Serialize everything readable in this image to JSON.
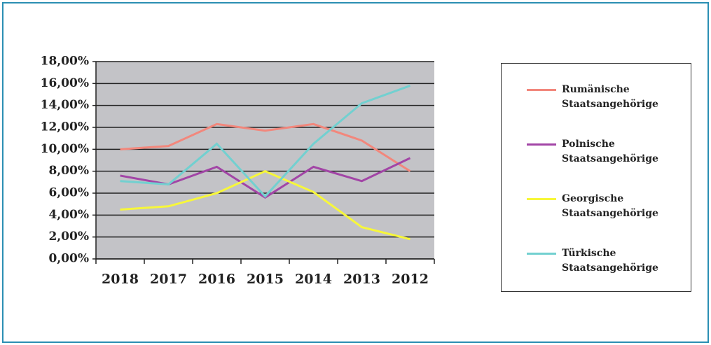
{
  "chart_data": {
    "type": "line",
    "categories": [
      "2018",
      "2017",
      "2016",
      "2015",
      "2014",
      "2013",
      "2012"
    ],
    "series": [
      {
        "name": "Rumänische Staatsangehörige",
        "color": "#f2877c",
        "values": [
          10.0,
          10.3,
          12.3,
          11.7,
          12.3,
          10.8,
          8.0
        ]
      },
      {
        "name": "Polnische Staatsangehörige",
        "color": "#a245a6",
        "values": [
          7.6,
          6.8,
          8.4,
          5.6,
          8.4,
          7.1,
          9.2
        ]
      },
      {
        "name": "Georgische Staatsangehörige",
        "color": "#f7f73a",
        "values": [
          4.5,
          4.8,
          6.0,
          8.0,
          6.1,
          2.9,
          1.8
        ]
      },
      {
        "name": "Türkische Staatsangehörige",
        "color": "#72d0d0",
        "values": [
          7.1,
          6.8,
          10.5,
          5.7,
          10.5,
          14.2,
          15.8
        ]
      }
    ],
    "ylim": [
      0,
      18
    ],
    "yticks": [
      {
        "value": 0,
        "label": "0,00%"
      },
      {
        "value": 2,
        "label": "2,00%"
      },
      {
        "value": 4,
        "label": "4,00%"
      },
      {
        "value": 6,
        "label": "6,00%"
      },
      {
        "value": 8,
        "label": "8,00%"
      },
      {
        "value": 10,
        "label": "10,00%"
      },
      {
        "value": 12,
        "label": "12,00%"
      },
      {
        "value": 14,
        "label": "14,00%"
      },
      {
        "value": 16,
        "label": "16,00%"
      },
      {
        "value": 18,
        "label": "18,00%"
      }
    ],
    "grid": true
  }
}
